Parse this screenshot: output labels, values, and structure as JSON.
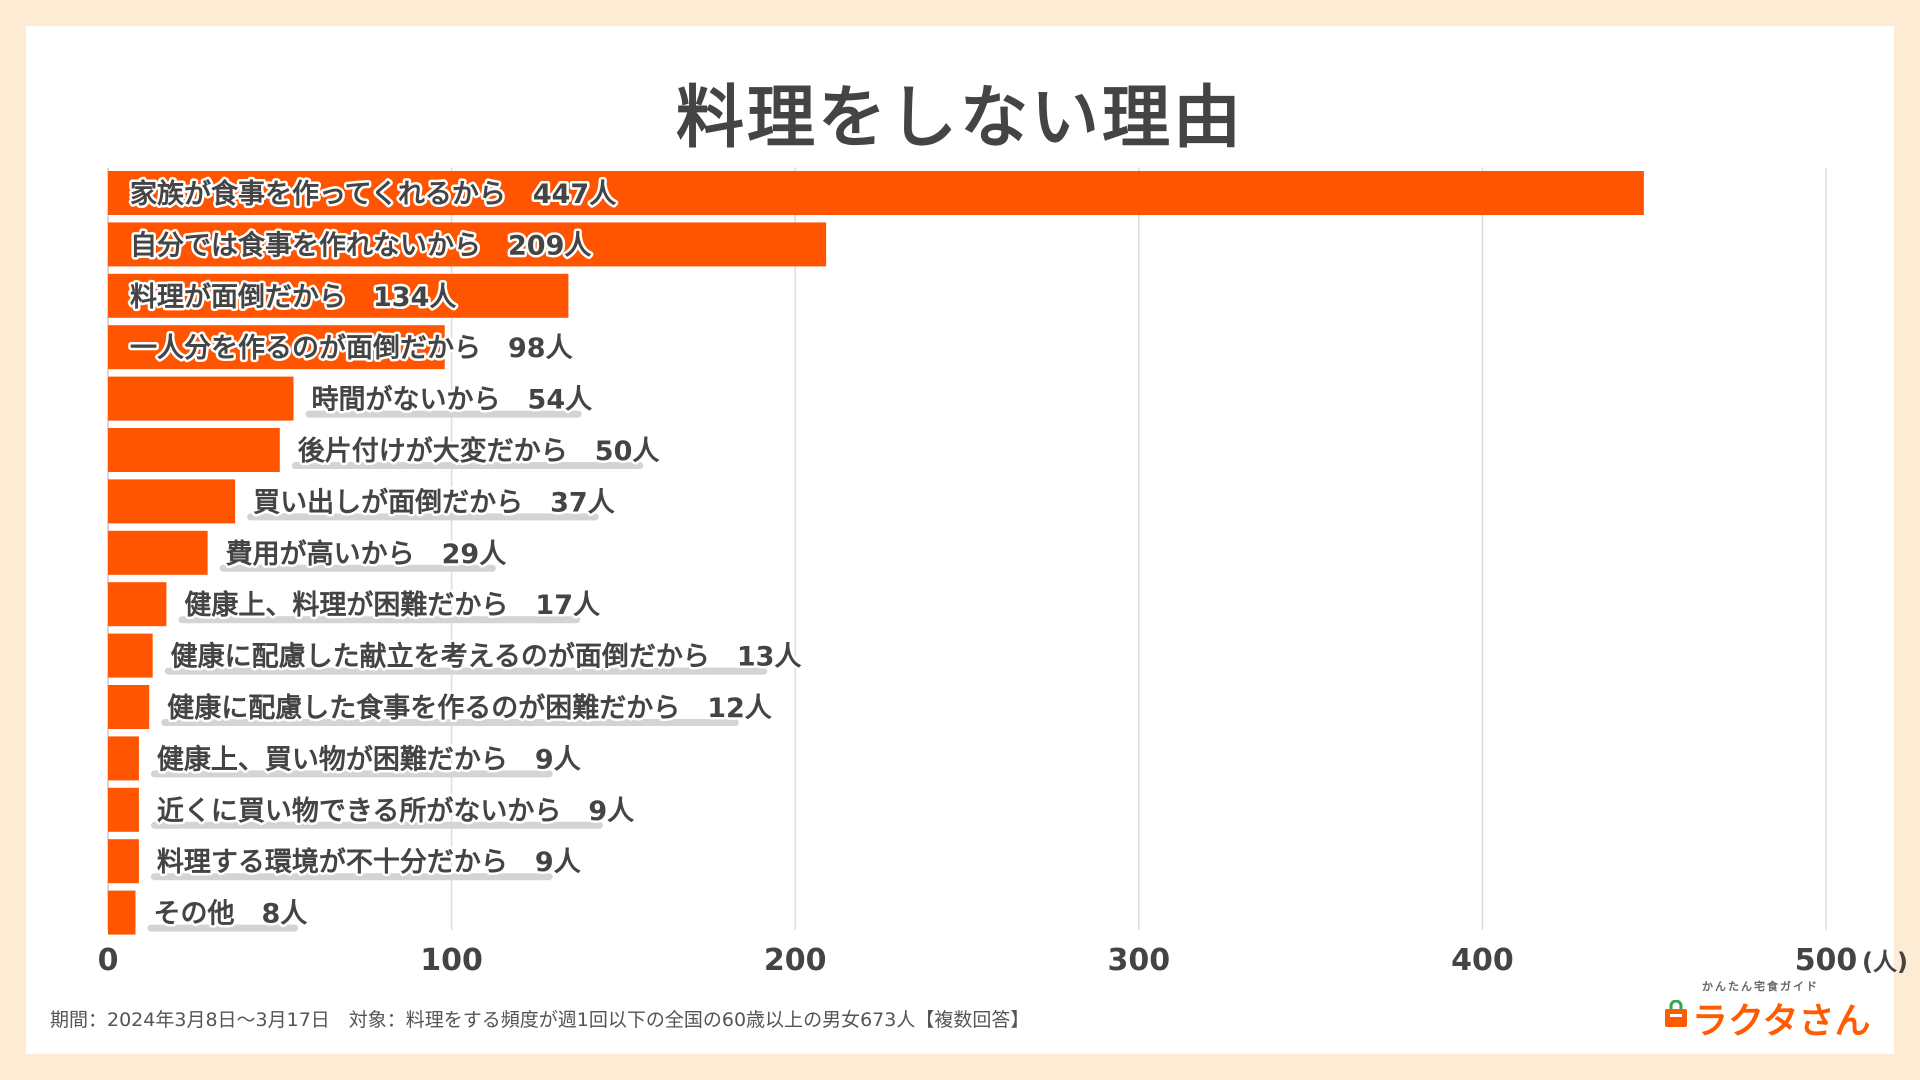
{
  "chart_title": "料理をしない理由",
  "chart_data": {
    "type": "bar",
    "orientation": "horizontal",
    "title": "料理をしない理由",
    "categories": [
      "家族が食事を作ってくれるから",
      "自分では食事を作れないから",
      "料理が面倒だから",
      "一人分を作るのが面倒だから",
      "時間がないから",
      "後片付けが大変だから",
      "買い出しが面倒だから",
      "費用が高いから",
      "健康上、料理が困難だから",
      "健康に配慮した献立を考えるのが面倒だから",
      "健康に配慮した食事を作るのが困難だから",
      "健康上、買い物が困難だから",
      "近くに買い物できる所がないから",
      "料理する環境が不十分だから",
      "その他"
    ],
    "values": [
      447,
      209,
      134,
      98,
      54,
      50,
      37,
      29,
      17,
      13,
      12,
      9,
      9,
      9,
      8
    ],
    "value_labels": [
      "447人",
      "209人",
      "134人",
      "98人",
      "54人",
      "50人",
      "37人",
      "29人",
      "17人",
      "13人",
      "12人",
      "9人",
      "9人",
      "9人",
      "8人"
    ],
    "xlim": [
      0,
      500
    ],
    "x_ticks": [
      0,
      100,
      200,
      300,
      400,
      500
    ],
    "x_tick_labels": [
      "0",
      "100",
      "200",
      "300",
      "400",
      "500"
    ],
    "x_unit": "(人)",
    "grid": "vertical",
    "bar_color": "#ff5500"
  },
  "footnote": "期間：2024年3月8日〜3月17日　対象：料理をする頻度が週1回以下の全国の60歳以上の男女673人【複数回答】",
  "logo": {
    "tagline": "かんたん宅食ガイド",
    "name": "ラクタさん",
    "color": "#ff5b00"
  }
}
